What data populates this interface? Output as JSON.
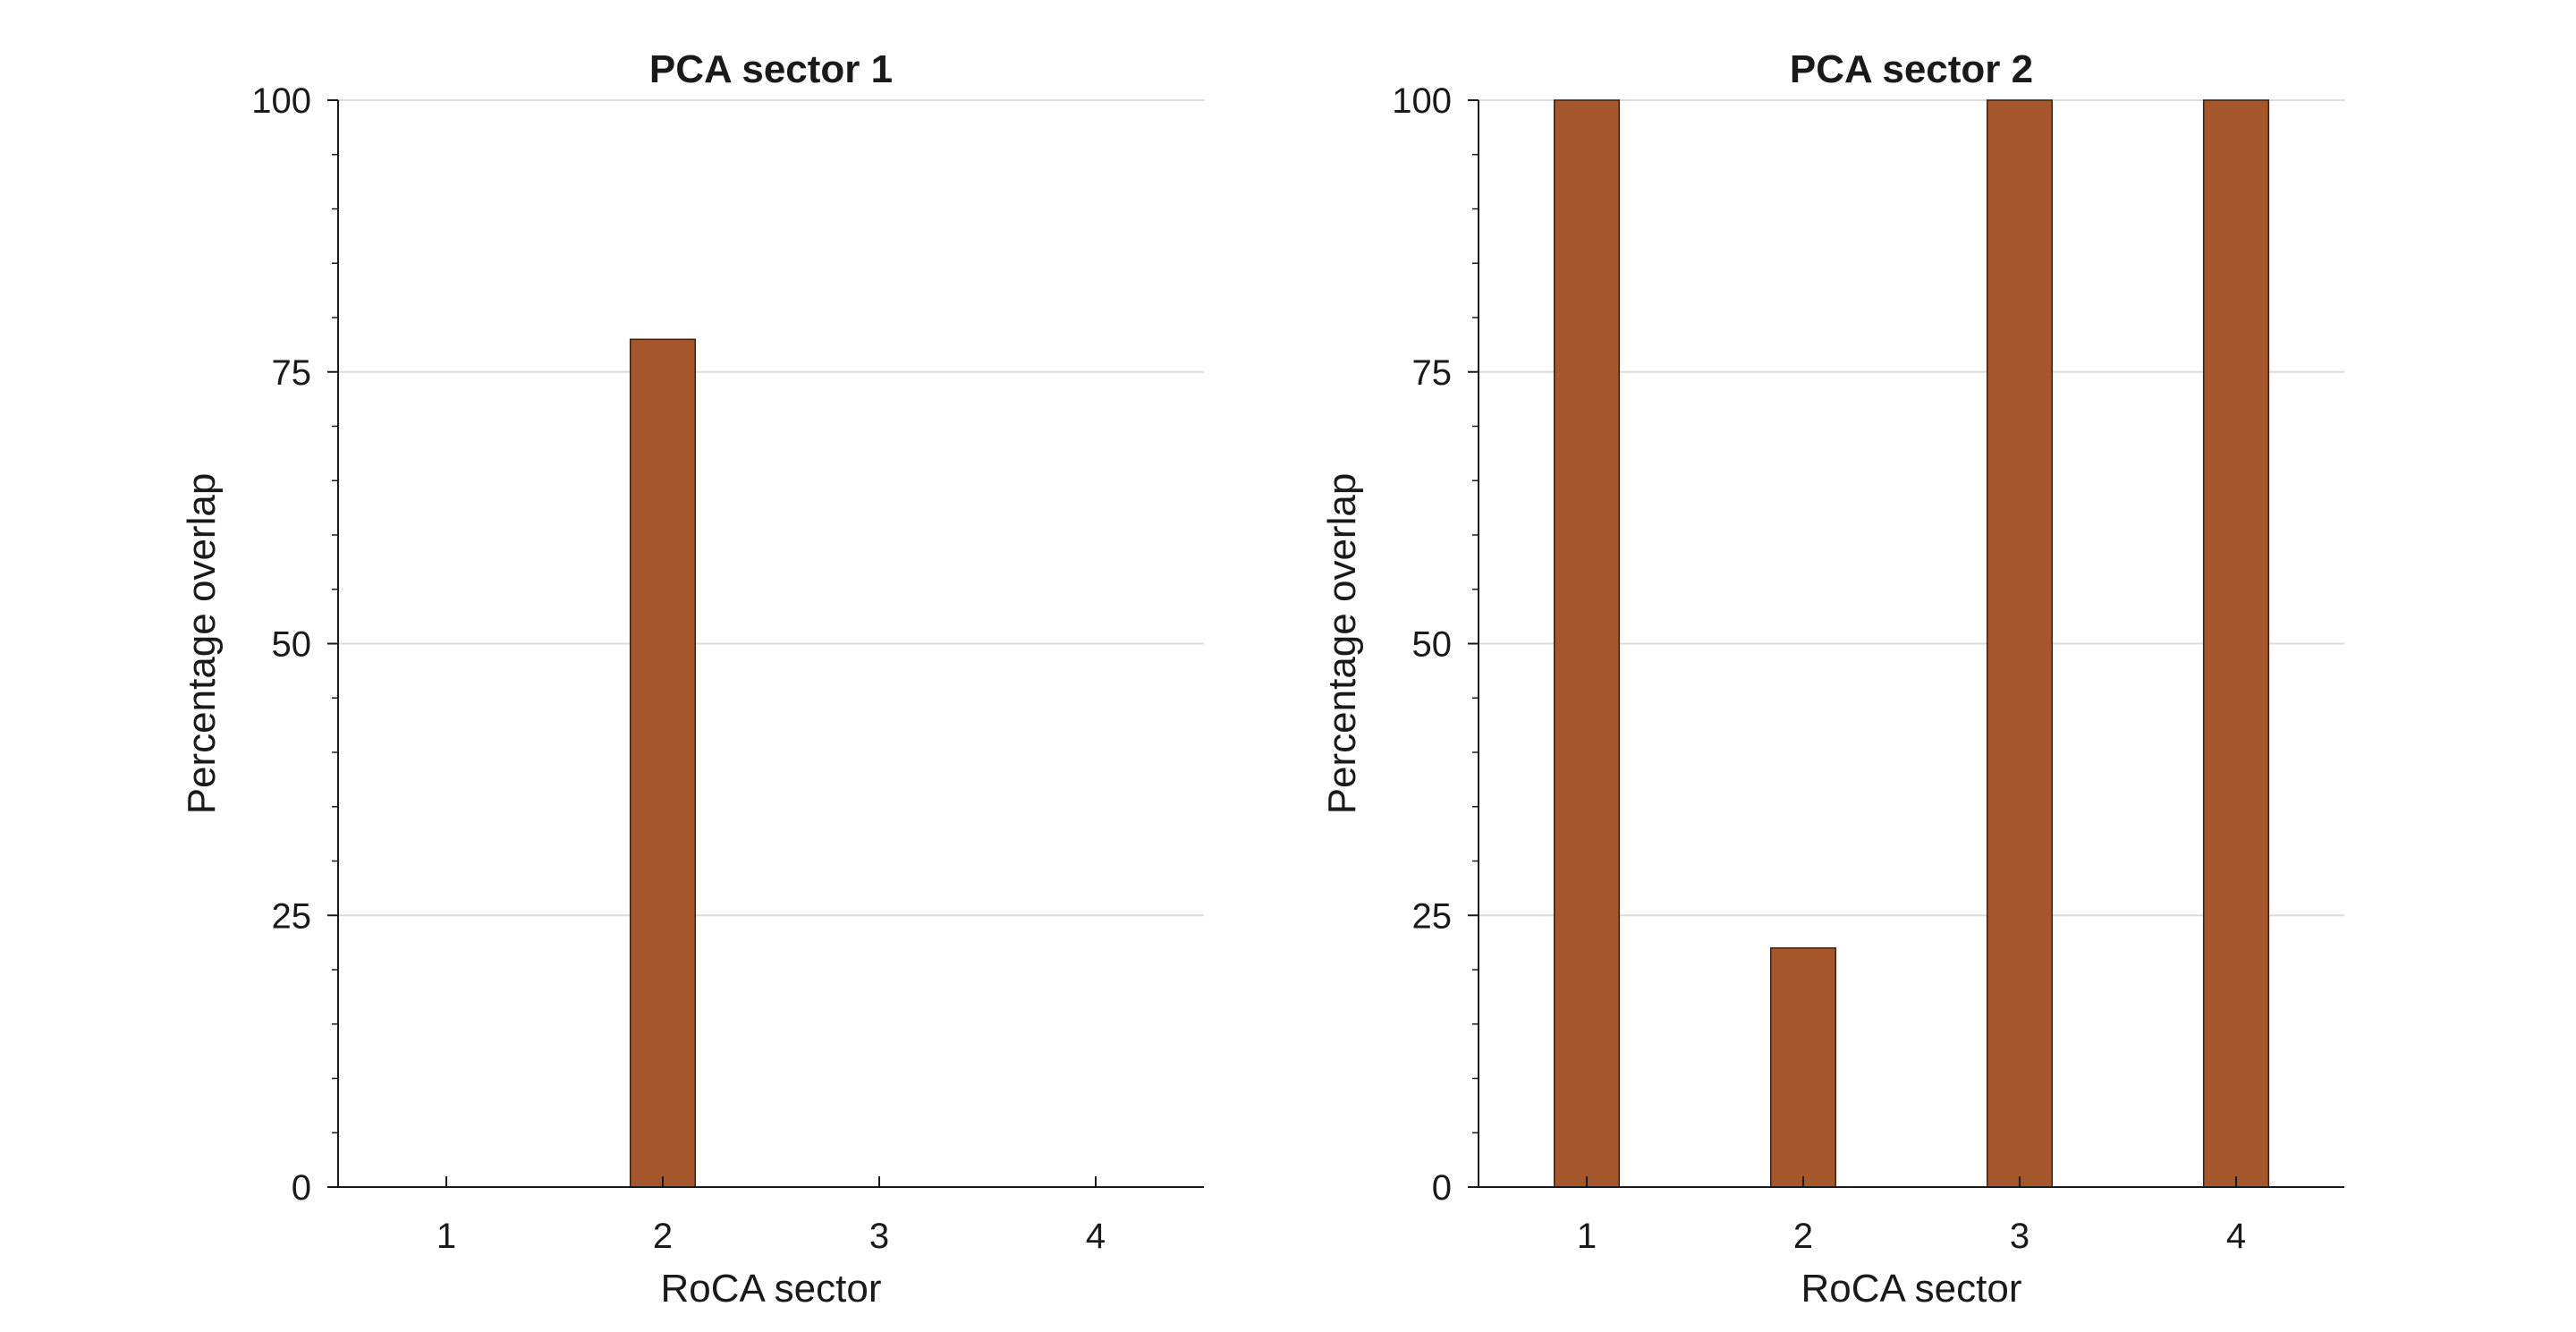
{
  "colors": {
    "bar_fill": "#a5572b",
    "bar_stroke": "#3a2010",
    "grid": "#dcdcdc",
    "axis": "#1a1a1a"
  },
  "chart_data": [
    {
      "type": "bar",
      "title": "PCA sector 1",
      "xlabel": "RoCA sector",
      "ylabel": "Percentage overlap",
      "categories": [
        "1",
        "2",
        "3",
        "4"
      ],
      "values": [
        0,
        78,
        0,
        0
      ],
      "ylim": [
        0,
        100
      ],
      "yticks": [
        0,
        25,
        50,
        75,
        100
      ],
      "grid": "horizontal"
    },
    {
      "type": "bar",
      "title": "PCA sector 2",
      "xlabel": "RoCA sector",
      "ylabel": "Percentage overlap",
      "categories": [
        "1",
        "2",
        "3",
        "4"
      ],
      "values": [
        100,
        22,
        100,
        100
      ],
      "ylim": [
        0,
        100
      ],
      "yticks": [
        0,
        25,
        50,
        75,
        100
      ],
      "grid": "horizontal"
    }
  ]
}
